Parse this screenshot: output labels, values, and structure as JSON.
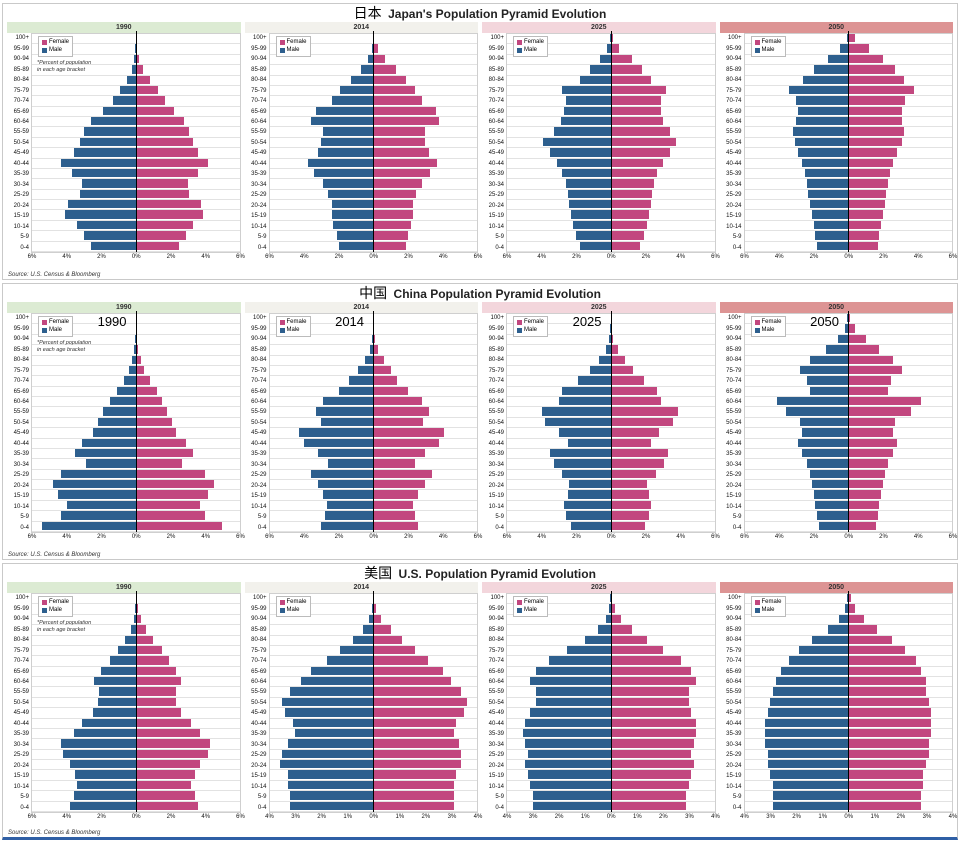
{
  "source_text": "Source: U.S. Census & Bloomberg",
  "footnote": "*Percent of population in each age bracket",
  "legend": {
    "female_label": "Female",
    "male_label": "Male"
  },
  "colors": {
    "male": "#2d5f8e",
    "female": "#c2477f",
    "grid": "#e2e2e2",
    "center_line": "#000000",
    "year_bands": {
      "1990": "#dcebd3",
      "2014": "#f2f1ec",
      "2025": "#f3d6dc",
      "2050": "#dd9494"
    }
  },
  "age_groups": [
    "100+",
    "95-99",
    "90-94",
    "85-89",
    "80-84",
    "75-79",
    "70-74",
    "65-69",
    "60-64",
    "55-59",
    "50-54",
    "45-49",
    "40-44",
    "35-39",
    "30-34",
    "25-29",
    "20-24",
    "15-19",
    "10-14",
    "5-9",
    "0-4"
  ],
  "age_order_note": "arrays run top-to-bottom: 100+ first, 0-4 last; values are percent of total population per gender",
  "chart_data": [
    {
      "type": "bar",
      "variant": "population-pyramid",
      "country_key": "japan",
      "title_cn": "日本",
      "title_en": "Japan's Population Pyramid Evolution",
      "charts": [
        {
          "year": "1990",
          "xmax": 6,
          "tick_step": 2,
          "show_footnote": true,
          "male": [
            0.01,
            0.03,
            0.09,
            0.22,
            0.5,
            0.9,
            1.3,
            1.9,
            2.6,
            3.0,
            3.2,
            3.6,
            4.3,
            3.7,
            3.1,
            3.2,
            3.9,
            4.1,
            3.4,
            3.0,
            2.6
          ],
          "female": [
            0.02,
            0.06,
            0.18,
            0.4,
            0.8,
            1.3,
            1.7,
            2.2,
            2.8,
            3.1,
            3.3,
            3.6,
            4.2,
            3.6,
            3.0,
            3.1,
            3.8,
            3.9,
            3.3,
            2.9,
            2.5
          ]
        },
        {
          "year": "2014",
          "xmax": 6,
          "tick_step": 2,
          "male": [
            0.02,
            0.1,
            0.3,
            0.7,
            1.3,
            1.9,
            2.4,
            3.3,
            3.6,
            2.9,
            3.0,
            3.2,
            3.8,
            3.4,
            2.9,
            2.6,
            2.4,
            2.4,
            2.3,
            2.1,
            2.0
          ],
          "female": [
            0.06,
            0.3,
            0.7,
            1.3,
            1.9,
            2.4,
            2.8,
            3.6,
            3.8,
            3.0,
            3.0,
            3.2,
            3.7,
            3.3,
            2.8,
            2.5,
            2.3,
            2.3,
            2.2,
            2.0,
            1.9
          ]
        },
        {
          "year": "2025",
          "xmax": 6,
          "tick_step": 2,
          "male": [
            0.03,
            0.2,
            0.6,
            1.2,
            1.8,
            2.8,
            2.6,
            2.7,
            2.9,
            3.3,
            3.9,
            3.5,
            3.1,
            2.8,
            2.6,
            2.5,
            2.4,
            2.3,
            2.2,
            2.0,
            1.8
          ],
          "female": [
            0.12,
            0.5,
            1.2,
            1.8,
            2.3,
            3.2,
            2.9,
            2.9,
            3.0,
            3.4,
            3.8,
            3.4,
            3.0,
            2.7,
            2.5,
            2.4,
            2.3,
            2.2,
            2.1,
            1.9,
            1.7
          ]
        },
        {
          "year": "2050",
          "xmax": 6,
          "tick_step": 2,
          "male": [
            0.1,
            0.5,
            1.2,
            2.0,
            2.6,
            3.4,
            3.0,
            2.9,
            3.0,
            3.2,
            3.1,
            2.9,
            2.7,
            2.5,
            2.4,
            2.3,
            2.2,
            2.1,
            2.0,
            1.9,
            1.8
          ],
          "female": [
            0.4,
            1.2,
            2.0,
            2.7,
            3.2,
            3.8,
            3.3,
            3.1,
            3.1,
            3.2,
            3.1,
            2.8,
            2.6,
            2.4,
            2.3,
            2.2,
            2.1,
            2.0,
            1.9,
            1.8,
            1.7
          ]
        }
      ]
    },
    {
      "type": "bar",
      "variant": "population-pyramid",
      "country_key": "china",
      "title_cn": "中国",
      "title_en": "China Population Pyramid Evolution",
      "charts": [
        {
          "year": "1990",
          "xmax": 6,
          "tick_step": 2,
          "show_footnote": true,
          "annotation": "1990",
          "male": [
            0,
            0.01,
            0.03,
            0.08,
            0.2,
            0.4,
            0.7,
            1.1,
            1.5,
            1.9,
            2.2,
            2.5,
            3.1,
            3.5,
            2.9,
            4.3,
            4.8,
            4.5,
            4.0,
            4.3,
            5.4
          ],
          "female": [
            0,
            0.02,
            0.05,
            0.12,
            0.3,
            0.5,
            0.8,
            1.2,
            1.5,
            1.8,
            2.1,
            2.3,
            2.9,
            3.3,
            2.7,
            4.0,
            4.5,
            4.2,
            3.7,
            4.0,
            5.0
          ]
        },
        {
          "year": "2014",
          "xmax": 6,
          "tick_step": 2,
          "annotation": "2014",
          "male": [
            0,
            0.02,
            0.08,
            0.2,
            0.5,
            0.9,
            1.4,
            2.0,
            2.9,
            3.3,
            3.0,
            4.3,
            4.0,
            3.2,
            2.6,
            3.6,
            3.2,
            2.9,
            2.7,
            2.8,
            3.0
          ],
          "female": [
            0.01,
            0.03,
            0.12,
            0.3,
            0.6,
            1.0,
            1.4,
            2.0,
            2.8,
            3.2,
            2.9,
            4.1,
            3.8,
            3.0,
            2.4,
            3.4,
            3.0,
            2.6,
            2.3,
            2.4,
            2.6
          ]
        },
        {
          "year": "2025",
          "xmax": 6,
          "tick_step": 2,
          "annotation": "2025",
          "male": [
            0,
            0.03,
            0.1,
            0.3,
            0.7,
            1.2,
            1.9,
            2.8,
            3.0,
            4.0,
            3.8,
            3.0,
            2.5,
            3.5,
            3.3,
            2.8,
            2.4,
            2.5,
            2.7,
            2.6,
            2.3
          ],
          "female": [
            0.01,
            0.05,
            0.15,
            0.4,
            0.8,
            1.3,
            1.9,
            2.7,
            2.9,
            3.9,
            3.6,
            2.8,
            2.3,
            3.3,
            3.1,
            2.6,
            2.1,
            2.2,
            2.3,
            2.2,
            2.0
          ]
        },
        {
          "year": "2050",
          "xmax": 6,
          "tick_step": 2,
          "annotation": "2050",
          "male": [
            0.05,
            0.2,
            0.6,
            1.3,
            2.2,
            2.8,
            2.4,
            2.2,
            4.1,
            3.6,
            2.8,
            2.7,
            2.9,
            2.7,
            2.4,
            2.2,
            2.1,
            2.0,
            1.9,
            1.8,
            1.7
          ],
          "female": [
            0.1,
            0.4,
            1.0,
            1.8,
            2.6,
            3.1,
            2.5,
            2.3,
            4.2,
            3.6,
            2.7,
            2.6,
            2.8,
            2.6,
            2.3,
            2.1,
            2.0,
            1.9,
            1.8,
            1.7,
            1.6
          ]
        }
      ]
    },
    {
      "type": "bar",
      "variant": "population-pyramid",
      "country_key": "us",
      "title_cn": "美国",
      "title_en": "U.S. Population Pyramid Evolution",
      "charts": [
        {
          "year": "1990",
          "xmax": 6,
          "tick_step": 2,
          "show_footnote": true,
          "male": [
            0.01,
            0.04,
            0.12,
            0.3,
            0.6,
            1.0,
            1.5,
            2.0,
            2.4,
            2.1,
            2.2,
            2.5,
            3.1,
            3.6,
            4.3,
            4.2,
            3.8,
            3.5,
            3.4,
            3.6,
            3.8
          ],
          "female": [
            0.04,
            0.12,
            0.3,
            0.6,
            1.0,
            1.5,
            1.9,
            2.3,
            2.6,
            2.3,
            2.3,
            2.6,
            3.2,
            3.7,
            4.3,
            4.2,
            3.7,
            3.4,
            3.2,
            3.4,
            3.6
          ]
        },
        {
          "year": "2014",
          "xmax": 4,
          "tick_step": 1,
          "male": [
            0.01,
            0.05,
            0.15,
            0.4,
            0.8,
            1.3,
            1.8,
            2.4,
            2.8,
            3.2,
            3.5,
            3.4,
            3.1,
            3.0,
            3.3,
            3.5,
            3.6,
            3.3,
            3.3,
            3.2,
            3.2
          ],
          "female": [
            0.03,
            0.1,
            0.3,
            0.7,
            1.1,
            1.6,
            2.1,
            2.7,
            3.0,
            3.4,
            3.6,
            3.5,
            3.2,
            3.1,
            3.3,
            3.4,
            3.4,
            3.2,
            3.1,
            3.1,
            3.1
          ]
        },
        {
          "year": "2025",
          "xmax": 4,
          "tick_step": 1,
          "male": [
            0.02,
            0.07,
            0.2,
            0.5,
            1.0,
            1.7,
            2.4,
            2.9,
            3.1,
            2.9,
            2.9,
            3.1,
            3.3,
            3.4,
            3.3,
            3.2,
            3.3,
            3.2,
            3.1,
            3.0,
            3.0
          ],
          "female": [
            0.05,
            0.15,
            0.4,
            0.8,
            1.4,
            2.0,
            2.7,
            3.1,
            3.3,
            3.0,
            3.0,
            3.1,
            3.3,
            3.3,
            3.2,
            3.1,
            3.2,
            3.1,
            3.0,
            2.9,
            2.9
          ]
        },
        {
          "year": "2050",
          "xmax": 4,
          "tick_step": 1,
          "male": [
            0.04,
            0.12,
            0.35,
            0.8,
            1.4,
            1.9,
            2.3,
            2.6,
            2.8,
            2.9,
            3.0,
            3.1,
            3.2,
            3.2,
            3.2,
            3.1,
            3.1,
            3.0,
            2.9,
            2.9,
            2.9
          ],
          "female": [
            0.1,
            0.25,
            0.6,
            1.1,
            1.7,
            2.2,
            2.6,
            2.8,
            3.0,
            3.0,
            3.1,
            3.2,
            3.2,
            3.2,
            3.1,
            3.1,
            3.0,
            2.9,
            2.9,
            2.8,
            2.8
          ]
        }
      ]
    }
  ]
}
